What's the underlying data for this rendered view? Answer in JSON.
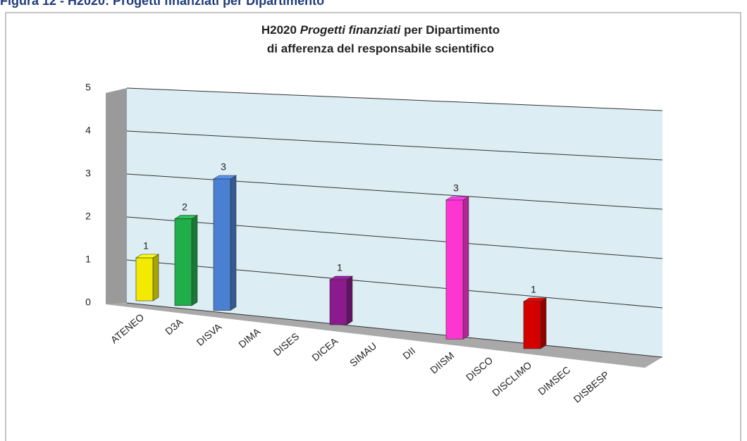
{
  "caption": "Figura 12 - H2020: Progetti finanziati per Dipartimento",
  "chart_data": {
    "type": "bar3d",
    "title": [
      "H2020",
      "Progetti finanziati",
      "per Dipartimento"
    ],
    "subtitle": "di afferenza del responsabile scientifico",
    "categories": [
      "ATENEO",
      "D3A",
      "DISVA",
      "DIMA",
      "DISES",
      "DICEA",
      "SIMAU",
      "DII",
      "DIISM",
      "DISCO",
      "DISCLIMO",
      "DIMSEC",
      "DISBESP"
    ],
    "values": [
      1,
      2,
      3,
      0,
      0,
      1,
      0,
      0,
      3,
      0,
      1,
      0,
      0
    ],
    "colors": [
      "#f2ea00",
      "#1fae4a",
      "#4a80d2",
      null,
      null,
      "#8a1a8e",
      null,
      null,
      "#ff35d2",
      null,
      "#d40000",
      null,
      null
    ],
    "ylim": [
      0,
      5
    ],
    "yticks": [
      0,
      1,
      2,
      3,
      4,
      5
    ],
    "grid": true
  }
}
